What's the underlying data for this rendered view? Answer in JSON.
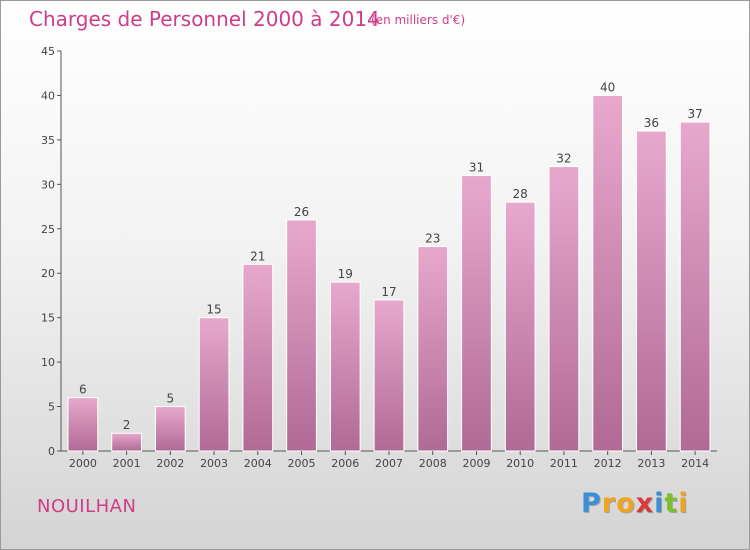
{
  "chart_data": {
    "type": "bar",
    "title": "Charges de Personnel 2000 à 2014",
    "subtitle": "(en milliers d'€)",
    "categories": [
      "2000",
      "2001",
      "2002",
      "2003",
      "2004",
      "2005",
      "2006",
      "2007",
      "2008",
      "2009",
      "2010",
      "2011",
      "2012",
      "2013",
      "2014"
    ],
    "values": [
      6,
      2,
      5,
      15,
      21,
      26,
      19,
      17,
      23,
      31,
      28,
      32,
      40,
      36,
      37
    ],
    "ylim": [
      0,
      45
    ],
    "yticks": [
      0,
      5,
      10,
      15,
      20,
      25,
      30,
      35,
      40,
      45
    ],
    "xlabel": "",
    "ylabel": "",
    "grid": false,
    "bar_color_top": "#e8a8cc",
    "bar_color_bottom": "#b06a95"
  },
  "location": "NOUILHAN",
  "logo": {
    "letters": [
      "P",
      "r",
      "o",
      "x",
      "i",
      "t",
      "i"
    ],
    "colors": [
      "#3b8fd9",
      "#f0a31d",
      "#f0a31d",
      "#d63a3a",
      "#3b8fd9",
      "#7cbf2c",
      "#f0a31d"
    ]
  }
}
